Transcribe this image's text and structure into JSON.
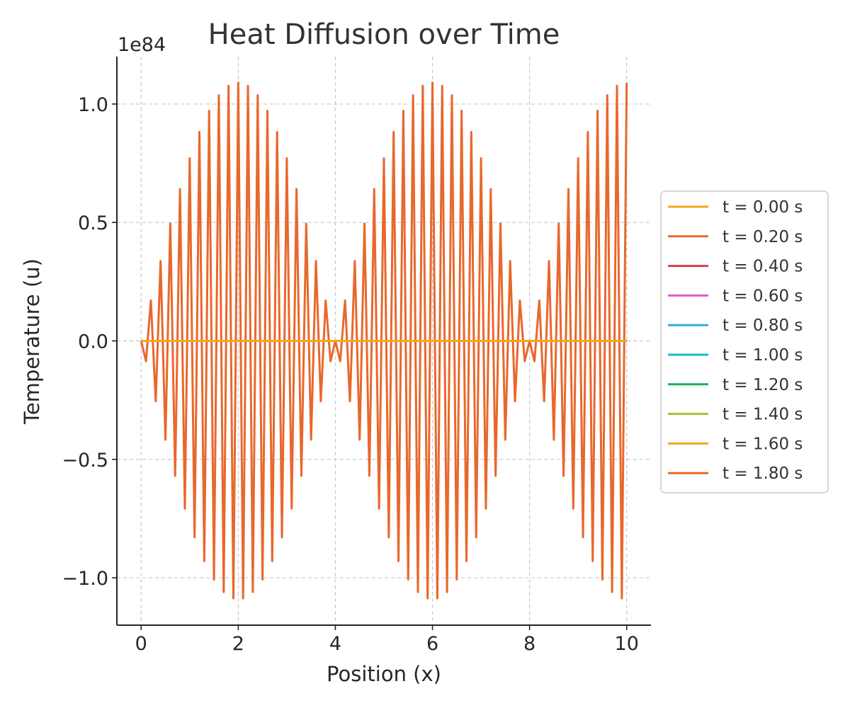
{
  "chart_data": {
    "type": "line",
    "title": "Heat Diffusion over Time",
    "xlabel": "Position (x)",
    "ylabel": "Temperature (u)",
    "y_offset_label": "1e84",
    "xlim": [
      -0.5,
      10.5
    ],
    "ylim": [
      -1.2,
      1.2
    ],
    "x_ticks": [
      0,
      2,
      4,
      6,
      8,
      10
    ],
    "x_tick_labels": [
      "0",
      "2",
      "4",
      "6",
      "8",
      "10"
    ],
    "y_ticks": [
      1.0,
      0.5,
      0.0,
      -0.5,
      -1.0
    ],
    "y_tick_labels": [
      "1.0",
      "0.5",
      "0.0",
      "−0.5",
      "−1.0"
    ],
    "grid": true,
    "legend_position": "center-right-outside",
    "oscillating_series": {
      "x_start": 0,
      "x_end": 10,
      "num_points": 101,
      "envelope_peak": 1.09,
      "envelope_note": "amplitude follows |sin(pi*x/4)| with alternating sign at each grid point"
    },
    "series": [
      {
        "name": "t = 0.00 s",
        "color": "#f2a71b",
        "pattern": "zero"
      },
      {
        "name": "t = 0.20 s",
        "color": "#e8682c",
        "pattern": "zero"
      },
      {
        "name": "t = 0.40 s",
        "color": "#d6404e",
        "pattern": "zero"
      },
      {
        "name": "t = 0.60 s",
        "color": "#e05cc7",
        "pattern": "zero"
      },
      {
        "name": "t = 0.80 s",
        "color": "#3aa8e0",
        "pattern": "zero"
      },
      {
        "name": "t = 1.00 s",
        "color": "#17bcc4",
        "pattern": "zero"
      },
      {
        "name": "t = 1.20 s",
        "color": "#18b35d",
        "pattern": "zero"
      },
      {
        "name": "t = 1.40 s",
        "color": "#a0c43a",
        "pattern": "zero"
      },
      {
        "name": "t = 1.60 s",
        "color": "#f2a71b",
        "pattern": "zero"
      },
      {
        "name": "t = 1.80 s",
        "color": "#e8682c",
        "pattern": "oscillating"
      }
    ]
  }
}
